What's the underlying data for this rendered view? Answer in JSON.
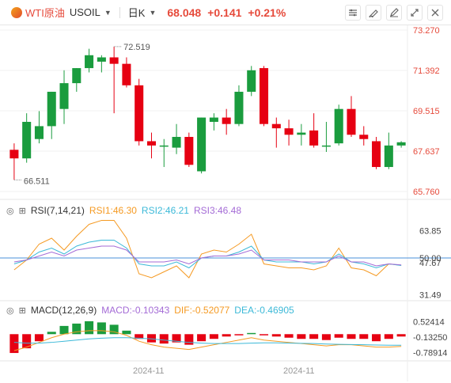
{
  "header": {
    "symbol": "WTI原油",
    "code": "USOIL",
    "period": "日K",
    "price": "68.048",
    "change": "+0.141",
    "change_pct": "+0.21%",
    "tool_icons": [
      "settings-chart-icon",
      "draw-icon",
      "pen-icon",
      "fullscreen-icon",
      "close-icon"
    ]
  },
  "main": {
    "y_ticks": [
      "73.270",
      "71.392",
      "69.515",
      "67.637",
      "65.760"
    ],
    "high_label": "72.519",
    "low_label": "66.511",
    "up_color": "#e60012",
    "down_color": "#1a9c3e"
  },
  "rsi": {
    "name": "RSI(7,14,21)",
    "rsi1": "RSI1:46.30",
    "rsi2": "RSI2:46.21",
    "rsi3": "RSI3:46.48",
    "y_ticks": [
      "63.85",
      "50.00",
      "47.67",
      "31.49"
    ]
  },
  "macd": {
    "name": "MACD(12,26,9)",
    "macd": "MACD:-0.10343",
    "dif": "DIF:-0.52077",
    "dea": "DEA:-0.46905",
    "y_ticks": [
      "0.52414",
      "-0.13250",
      "-0.78914"
    ]
  },
  "x_labels": [
    "2024-11",
    "2024-11"
  ],
  "chart_data": {
    "type": "candlestick",
    "ylim": [
      65.76,
      73.27
    ],
    "candles": [
      {
        "o": 67.7,
        "h": 68.0,
        "l": 66.3,
        "c": 67.3
      },
      {
        "o": 67.3,
        "h": 69.4,
        "l": 67.1,
        "c": 69.0
      },
      {
        "o": 68.2,
        "h": 69.5,
        "l": 68.0,
        "c": 68.8
      },
      {
        "o": 68.8,
        "h": 70.4,
        "l": 68.2,
        "c": 70.4
      },
      {
        "o": 69.6,
        "h": 71.4,
        "l": 68.9,
        "c": 70.8
      },
      {
        "o": 70.8,
        "h": 71.5,
        "l": 70.4,
        "c": 71.5
      },
      {
        "o": 71.5,
        "h": 72.4,
        "l": 71.3,
        "c": 72.1
      },
      {
        "o": 71.8,
        "h": 72.1,
        "l": 71.3,
        "c": 72.0
      },
      {
        "o": 72.0,
        "h": 72.5,
        "l": 69.4,
        "c": 71.7
      },
      {
        "o": 71.7,
        "h": 72.0,
        "l": 70.6,
        "c": 70.7
      },
      {
        "o": 70.7,
        "h": 71.0,
        "l": 67.9,
        "c": 68.1
      },
      {
        "o": 68.1,
        "h": 68.5,
        "l": 67.3,
        "c": 67.9
      },
      {
        "o": 67.9,
        "h": 68.2,
        "l": 66.9,
        "c": 67.9
      },
      {
        "o": 67.8,
        "h": 68.9,
        "l": 67.5,
        "c": 68.3
      },
      {
        "o": 68.3,
        "h": 68.5,
        "l": 66.9,
        "c": 67.0
      },
      {
        "o": 66.7,
        "h": 69.2,
        "l": 66.6,
        "c": 69.2
      },
      {
        "o": 69.0,
        "h": 69.4,
        "l": 68.6,
        "c": 69.2
      },
      {
        "o": 69.2,
        "h": 69.6,
        "l": 68.4,
        "c": 68.9
      },
      {
        "o": 68.9,
        "h": 70.7,
        "l": 68.8,
        "c": 70.4
      },
      {
        "o": 70.4,
        "h": 71.6,
        "l": 70.2,
        "c": 71.4
      },
      {
        "o": 71.5,
        "h": 71.6,
        "l": 68.8,
        "c": 68.9
      },
      {
        "o": 68.9,
        "h": 69.2,
        "l": 67.8,
        "c": 68.7
      },
      {
        "o": 68.7,
        "h": 69.1,
        "l": 67.9,
        "c": 68.4
      },
      {
        "o": 68.4,
        "h": 68.9,
        "l": 67.9,
        "c": 68.5
      },
      {
        "o": 68.6,
        "h": 69.4,
        "l": 67.8,
        "c": 67.9
      },
      {
        "o": 67.9,
        "h": 69.0,
        "l": 67.6,
        "c": 67.9
      },
      {
        "o": 68.0,
        "h": 69.8,
        "l": 67.9,
        "c": 69.6
      },
      {
        "o": 69.6,
        "h": 70.2,
        "l": 68.3,
        "c": 68.4
      },
      {
        "o": 68.4,
        "h": 68.8,
        "l": 67.9,
        "c": 68.2
      },
      {
        "o": 68.1,
        "h": 68.3,
        "l": 66.8,
        "c": 66.9
      },
      {
        "o": 66.9,
        "h": 68.5,
        "l": 66.8,
        "c": 67.9
      },
      {
        "o": 67.9,
        "h": 68.1,
        "l": 67.8,
        "c": 68.05
      }
    ],
    "rsi1": [
      44,
      49,
      57,
      60,
      54,
      61,
      67,
      69,
      69,
      60,
      42,
      40,
      43,
      46,
      40,
      52,
      54,
      53,
      57,
      62,
      47,
      46,
      45,
      45,
      44,
      46,
      55,
      45,
      44,
      41,
      47,
      46.3
    ],
    "rsi2": [
      47,
      49,
      53,
      55,
      52,
      56,
      58,
      59,
      59,
      55,
      47,
      46,
      46,
      48,
      45,
      50,
      51,
      51,
      53,
      56,
      49,
      48,
      48,
      48,
      47,
      48,
      52,
      48,
      47,
      45,
      47,
      46.2
    ],
    "rsi3": [
      48,
      49,
      51,
      53,
      51,
      54,
      55,
      56,
      56,
      54,
      48,
      48,
      48,
      49,
      47,
      50,
      51,
      51,
      52,
      54,
      49,
      49,
      49,
      48,
      48,
      48,
      51,
      48,
      48,
      46,
      47,
      46.5
    ],
    "rsi_ylim": [
      30,
      70
    ],
    "macd_hist": [
      -0.8,
      -0.6,
      -0.3,
      0.1,
      0.35,
      0.45,
      0.55,
      0.5,
      0.4,
      0.15,
      -0.2,
      -0.35,
      -0.4,
      -0.35,
      -0.45,
      -0.3,
      -0.2,
      -0.1,
      -0.05,
      0.05,
      -0.05,
      -0.1,
      -0.15,
      -0.2,
      -0.2,
      -0.25,
      -0.15,
      -0.2,
      -0.2,
      -0.3,
      -0.2,
      -0.1
    ],
    "macd_dif": [
      -0.7,
      -0.55,
      -0.35,
      -0.15,
      0.0,
      0.1,
      0.15,
      0.15,
      0.1,
      -0.05,
      -0.3,
      -0.45,
      -0.55,
      -0.6,
      -0.65,
      -0.55,
      -0.45,
      -0.35,
      -0.25,
      -0.15,
      -0.25,
      -0.3,
      -0.35,
      -0.4,
      -0.45,
      -0.5,
      -0.45,
      -0.45,
      -0.5,
      -0.55,
      -0.55,
      -0.52
    ],
    "macd_dea": [
      -0.35,
      -0.38,
      -0.38,
      -0.35,
      -0.3,
      -0.25,
      -0.2,
      -0.17,
      -0.15,
      -0.15,
      -0.17,
      -0.2,
      -0.25,
      -0.3,
      -0.35,
      -0.38,
      -0.4,
      -0.4,
      -0.4,
      -0.38,
      -0.37,
      -0.37,
      -0.38,
      -0.39,
      -0.4,
      -0.42,
      -0.43,
      -0.44,
      -0.45,
      -0.46,
      -0.47,
      -0.47
    ],
    "macd_ylim": [
      -1.0,
      0.75
    ]
  }
}
